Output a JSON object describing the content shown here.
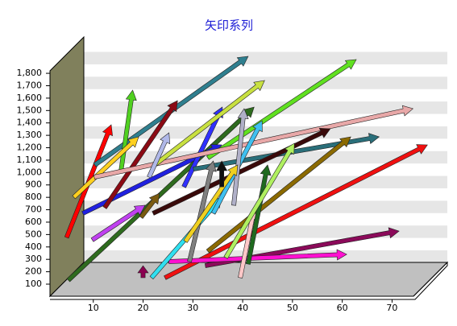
{
  "chart_data": {
    "type": "arrow",
    "title": "矢印系列",
    "xlim": [
      1.3,
      74.3
    ],
    "xticks": [
      10,
      20,
      30,
      40,
      50,
      60,
      70
    ],
    "ylim": [
      2.7,
      1820
    ],
    "yticks": [
      100,
      200,
      300,
      400,
      500,
      600,
      700,
      800,
      900,
      {
        "value": 1000,
        "label": "1,000"
      },
      {
        "value": 1100,
        "label": "1,100"
      },
      {
        "value": 1200,
        "label": "1,200"
      },
      {
        "value": 1300,
        "label": "1,300"
      },
      {
        "value": 1400,
        "label": "1,400"
      },
      {
        "value": 1500,
        "label": "1,500"
      },
      {
        "value": 1600,
        "label": "1,600"
      },
      {
        "value": 1700,
        "label": "1,700"
      },
      {
        "value": 1800,
        "label": "1,800"
      }
    ],
    "grid": true,
    "series": [
      {
        "color": "#ff0000",
        "x": [
          4.65,
          13.6
        ],
        "values": [
          476,
          1385
        ]
      },
      {
        "color": "#2e6b1e",
        "x": [
          5.0,
          42.3
        ],
        "values": [
          132,
          1528
        ]
      },
      {
        "color": "#2f7f8f",
        "x": [
          10.3,
          41.1
        ],
        "values": [
          1061,
          1937
        ]
      },
      {
        "color": "#2020e0",
        "x": [
          7.9,
          35.8
        ],
        "values": [
          671,
          1223
        ]
      },
      {
        "color": "#3030ff",
        "x": [
          28.2,
          35.9
        ],
        "values": [
          885,
          1528
        ]
      },
      {
        "color": "#50d020",
        "x": [
          15.5,
          17.9
        ],
        "values": [
          996,
          1664
        ]
      },
      {
        "color": "#8b0a14",
        "x": [
          12.3,
          26.9
        ],
        "values": [
          717,
          1580
        ]
      },
      {
        "color": "#ffd020",
        "x": [
          6.1,
          19.1
        ],
        "values": [
          801,
          1288
        ]
      },
      {
        "color": "#60e020",
        "x": [
          33.0,
          62.8
        ],
        "values": [
          1119,
          1911
        ]
      },
      {
        "color": "#e8a8a8",
        "x": [
          10.2,
          74.2
        ],
        "values": [
          963,
          1515
        ]
      },
      {
        "color": "#2a6f7a",
        "x": [
          30.1,
          67.4
        ],
        "values": [
          1028,
          1288
        ]
      },
      {
        "color": "#3a0a0a",
        "x": [
          22.0,
          57.6
        ],
        "values": [
          671,
          1353
        ]
      },
      {
        "color": "#f01010",
        "x": [
          24.4,
          77.1
        ],
        "values": [
          152,
          1223
        ]
      },
      {
        "color": "#8b0a5a",
        "x": [
          32.5,
          71.4
        ],
        "values": [
          249,
          528
        ]
      },
      {
        "color": "#ff10d0",
        "x": [
          25.2,
          60.9
        ],
        "values": [
          282,
          340
        ]
      },
      {
        "color": "#8b6a00",
        "x": [
          33.0,
          61.7
        ],
        "values": [
          366,
          1288
        ]
      },
      {
        "color": "#c8e040",
        "x": [
          22.3,
          44.4
        ],
        "values": [
          1061,
          1742
        ]
      },
      {
        "color": "#30e0f0",
        "x": [
          21.7,
          35.8
        ],
        "values": [
          152,
          801
        ]
      },
      {
        "color": "#40c0f0",
        "x": [
          34.1,
          43.9
        ],
        "values": [
          671,
          1418
        ]
      },
      {
        "color": "#808080",
        "x": [
          29.3,
          34.1
        ],
        "values": [
          282,
          1093
        ]
      },
      {
        "color": "#b0b0c8",
        "x": [
          38.2,
          40.3
        ],
        "values": [
          736,
          1515
        ]
      },
      {
        "color": "#b0b8e8",
        "x": [
          21.2,
          25.2
        ],
        "values": [
          963,
          1320
        ]
      },
      {
        "color": "#ffc8c8",
        "x": [
          39.5,
          42.3
        ],
        "values": [
          152,
          704
        ]
      },
      {
        "color": "#1f6a1f",
        "x": [
          41.1,
          45.0
        ],
        "values": [
          262,
          1061
        ]
      },
      {
        "color": "#b0f060",
        "x": [
          36.6,
          50.4
        ],
        "values": [
          314,
          1236
        ]
      },
      {
        "color": "#f0d020",
        "x": [
          28.5,
          39.0
        ],
        "values": [
          444,
          1061
        ]
      },
      {
        "color": "#c040f0",
        "x": [
          9.8,
          20.4
        ],
        "values": [
          457,
          736
        ]
      },
      {
        "color": "#8b0050",
        "x": [
          20.0,
          20.0
        ],
        "values": [
          152,
          249
        ]
      },
      {
        "color": "#101010",
        "x": [
          35.8,
          35.8
        ],
        "values": [
          885,
          1093
        ]
      },
      {
        "color": "#7a5a10",
        "x": [
          19.6,
          23.3
        ],
        "values": [
          639,
          833
        ]
      }
    ]
  }
}
